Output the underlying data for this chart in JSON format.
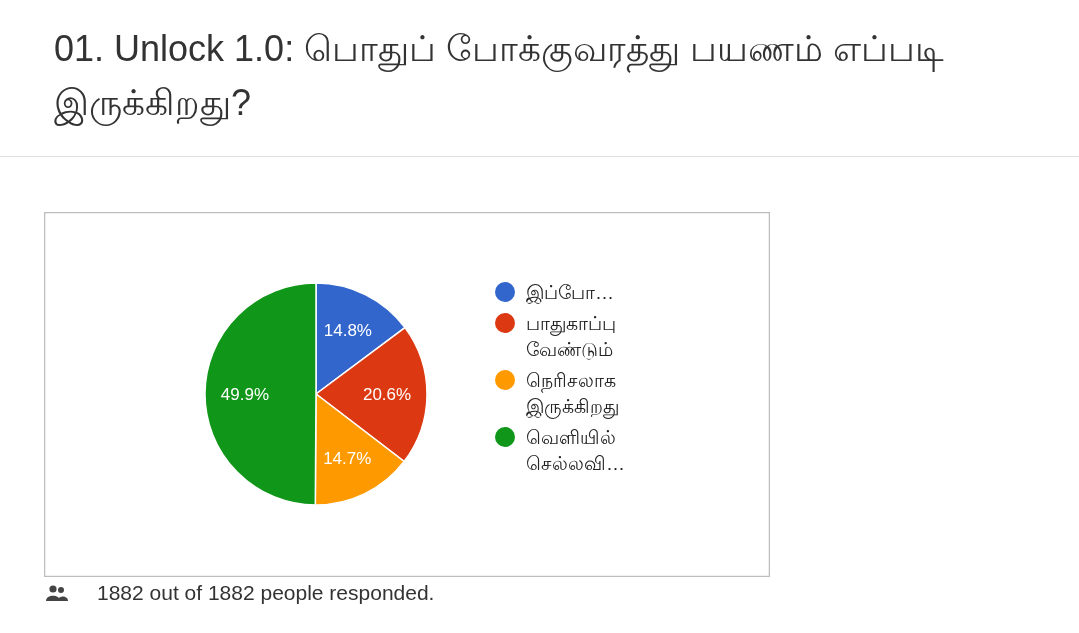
{
  "chart_data": {
    "type": "pie",
    "title": "01. Unlock 1.0: பொதுப் போக்குவரத்து பயணம் எப்படி இருக்கிறது?",
    "categories": [
      "இப்போ…",
      "பாதுகாப்பு வேண்டும்",
      "நெரிசலாக இருக்கிறது",
      "வெளியில் செல்லவி…"
    ],
    "values": [
      14.8,
      20.6,
      14.7,
      49.9
    ],
    "value_labels": [
      "14.8%",
      "20.6%",
      "14.7%",
      "49.9%"
    ],
    "colors": [
      "#3366cc",
      "#dc3912",
      "#ff9900",
      "#109618"
    ],
    "legend": "right",
    "annotations": [
      "1882 out of 1882 people responded."
    ]
  }
}
